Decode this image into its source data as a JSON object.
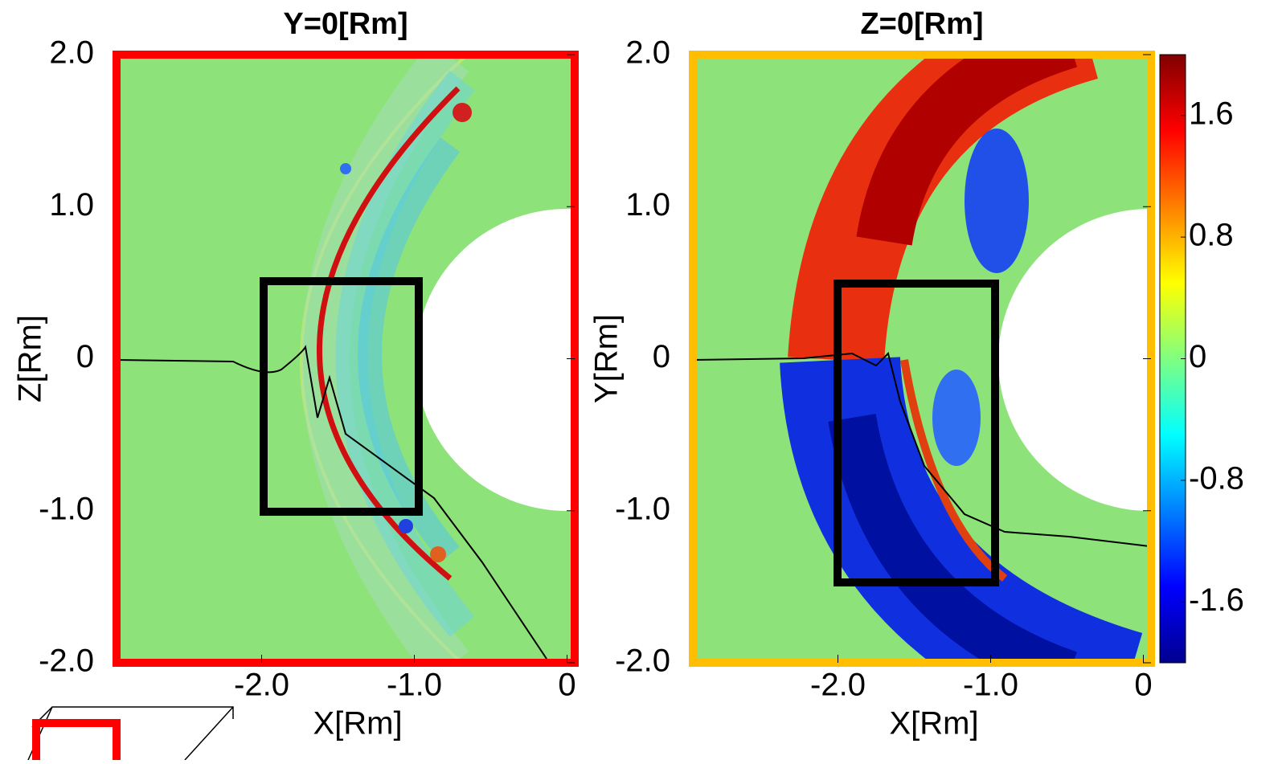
{
  "chart_data": [
    {
      "type": "heatmap",
      "title": "Y=0[Rm]",
      "x_label": "X[Rm]",
      "y_label": "Z[Rm]",
      "frame_color": "#ff0000",
      "xlim": [
        -2.95,
        0.05
      ],
      "ylim": [
        -2.0,
        2.0
      ],
      "xticks": [
        {
          "value": -2,
          "label": "-2.0"
        },
        {
          "value": -1,
          "label": "-1.0"
        },
        0
      ],
      "yticks": [
        {
          "value": 2,
          "label": "2.0"
        },
        {
          "value": 1,
          "label": "1.0"
        },
        0,
        {
          "value": -1,
          "label": "-1.0"
        },
        {
          "value": -2,
          "label": "-2.0"
        }
      ]
    },
    {
      "type": "heatmap",
      "title": "Z=0[Rm]",
      "x_label": "X[Rm]",
      "y_label": "Y[Rm]",
      "frame_color": "#ffbf00",
      "xlim": [
        -2.95,
        0.05
      ],
      "ylim": [
        -2.0,
        2.0
      ],
      "xticks": [
        {
          "value": -2,
          "label": "-2.0"
        },
        {
          "value": -1,
          "label": "-1.0"
        },
        0
      ],
      "yticks": [
        {
          "value": 2,
          "label": "2.0"
        },
        {
          "value": 1,
          "label": "1.0"
        },
        0,
        {
          "value": -1,
          "label": "-1.0"
        },
        {
          "value": -2,
          "label": "-2.0"
        }
      ],
      "clim": [
        -2.0,
        2.0
      ],
      "cticks": [
        1.6,
        0.8,
        0,
        -0.8,
        -1.6
      ]
    }
  ]
}
